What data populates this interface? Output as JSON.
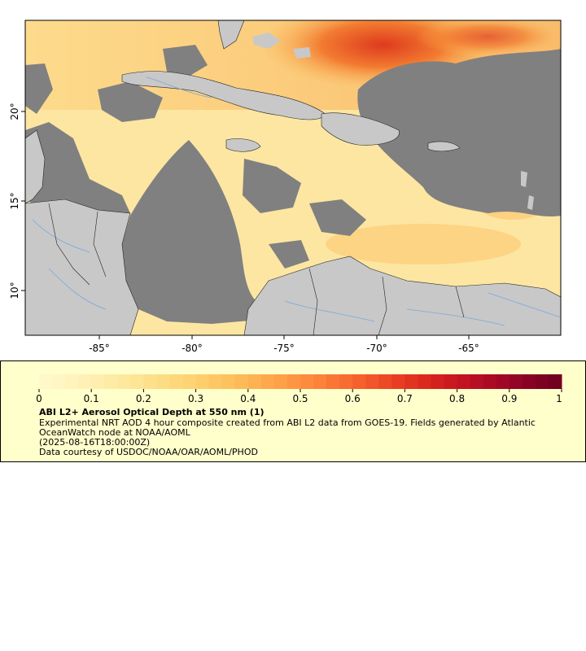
{
  "map": {
    "lon_ticks": [
      "-85°",
      "-80°",
      "-75°",
      "-70°",
      "-65°"
    ],
    "lat_ticks": [
      "20°",
      "15°",
      "10°"
    ],
    "lon_range": [
      -89,
      -60
    ],
    "lat_range": [
      8,
      25.5
    ],
    "ocean_color": "#fde9a8",
    "land_color": "#c8c8c8",
    "nodata_color": "#808080",
    "river_color": "#7aa8d8",
    "border_color": "#222222"
  },
  "legend": {
    "ticks": [
      "0",
      "0.1",
      "0.2",
      "0.3",
      "0.4",
      "0.5",
      "0.6",
      "0.7",
      "0.8",
      "0.9",
      "1"
    ],
    "title": "ABI L2+ Aerosol Optical Depth at 550 nm (1)",
    "description": "Experimental NRT AOD 4 hour composite created from ABI L2 data from GOES-19. Fields generated by Atlantic OceanWatch node at NOAA/AOML",
    "timestamp": "(2025-08-16T18:00:00Z)",
    "credit": "Data courtesy of USDOC/NOAA/OAR/AOML/PHOD",
    "colorscale": [
      "#fffacd",
      "#fff2b8",
      "#fee9a0",
      "#fedd86",
      "#fecf6c",
      "#fdbb58",
      "#fda047",
      "#fc8139",
      "#f65f2d",
      "#e83b22",
      "#d21d1f",
      "#b30c24",
      "#8f0327",
      "#6b0020"
    ]
  }
}
